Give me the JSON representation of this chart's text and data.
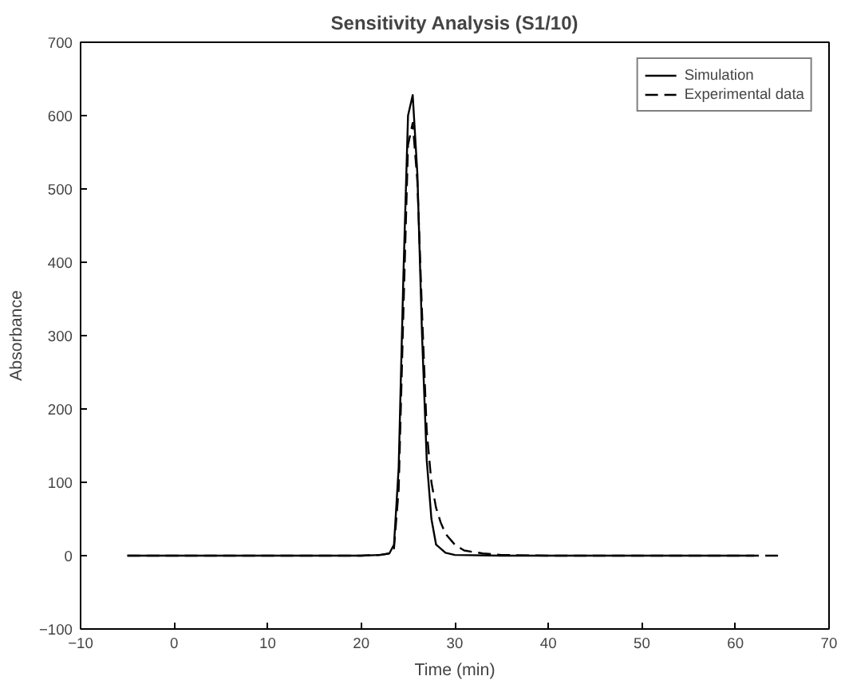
{
  "chart_data": {
    "type": "line",
    "title": "Sensitivity Analysis (S1/10)",
    "xlabel": "Time (min)",
    "ylabel": "Absorbance",
    "xlim": [
      -10,
      70
    ],
    "ylim": [
      -100,
      700
    ],
    "xticks": [
      -10,
      0,
      10,
      20,
      30,
      40,
      50,
      60,
      70
    ],
    "yticks": [
      -100,
      0,
      100,
      200,
      300,
      400,
      500,
      600,
      700
    ],
    "grid": false,
    "legend": "top right",
    "series": [
      {
        "name": "Simulation",
        "color": "#000000",
        "line_style": "solid",
        "x": [
          -5,
          20,
          22,
          23,
          23.5,
          24,
          24.5,
          25,
          25.5,
          26,
          26.5,
          27,
          27.5,
          28,
          29,
          30,
          35,
          62
        ],
        "values": [
          0,
          0,
          1,
          3,
          15,
          120,
          380,
          600,
          628,
          520,
          300,
          130,
          50,
          15,
          4,
          1,
          0,
          0
        ]
      },
      {
        "name": "Experimental data",
        "color": "#000000",
        "line_style": "dashed",
        "x": [
          -5,
          20,
          22,
          23,
          23.5,
          24,
          24.5,
          25,
          25.5,
          26,
          26.5,
          27,
          27.5,
          28,
          28.5,
          29,
          30,
          31,
          33,
          35,
          40,
          65
        ],
        "values": [
          0,
          0,
          1,
          3,
          10,
          90,
          330,
          560,
          590,
          510,
          330,
          170,
          100,
          65,
          45,
          30,
          15,
          7,
          3,
          1,
          0,
          0
        ]
      }
    ]
  }
}
